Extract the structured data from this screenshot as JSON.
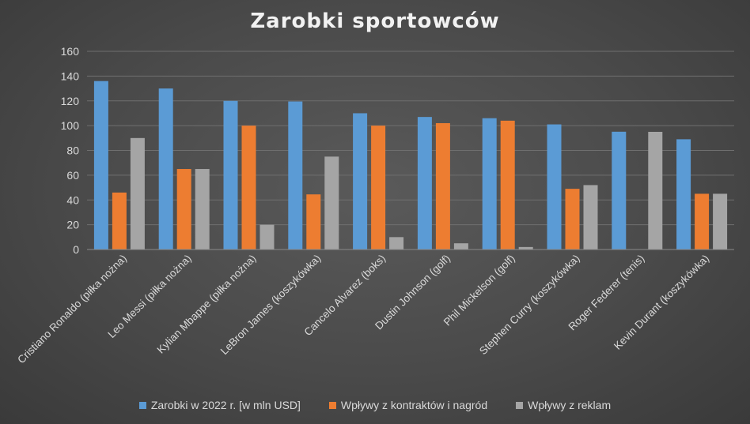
{
  "chart_data": {
    "type": "bar",
    "title": "Zarobki sportowców",
    "categories": [
      "Cristiano Ronaldo (piłka nożna)",
      "Leo Messi (piłka nożna)",
      "Kylian Mbappe (piłka nożna)",
      "LeBron James (koszykówka)",
      "Cancelo Alvarez (boks)",
      "Dustin Johnson (golf)",
      "Phil Mickelson (golf)",
      "Stephen Curry (koszykówka)",
      "Roger Federer (tenis)",
      "Kevin Durant (koszykówka)"
    ],
    "series": [
      {
        "name": "Zarobki w 2022 r. [w mln USD]",
        "color": "#5b9bd5",
        "values": [
          136,
          130,
          120,
          119.5,
          110,
          107,
          106,
          101,
          95.1,
          89
        ]
      },
      {
        "name": "Wpływy z kontraktów i nagród",
        "color": "#ed7d31",
        "values": [
          46,
          65,
          100,
          44.5,
          100,
          102,
          104,
          49,
          0.1,
          45
        ]
      },
      {
        "name": "Wpływy z reklam",
        "color": "#a5a5a5",
        "values": [
          90,
          65,
          20,
          75,
          10,
          5,
          2,
          52,
          95,
          45
        ]
      }
    ],
    "ylim": [
      0,
      160
    ],
    "yticks": [
      0,
      20,
      40,
      60,
      80,
      100,
      120,
      140,
      160
    ],
    "grid": true,
    "legend_position": "bottom"
  }
}
